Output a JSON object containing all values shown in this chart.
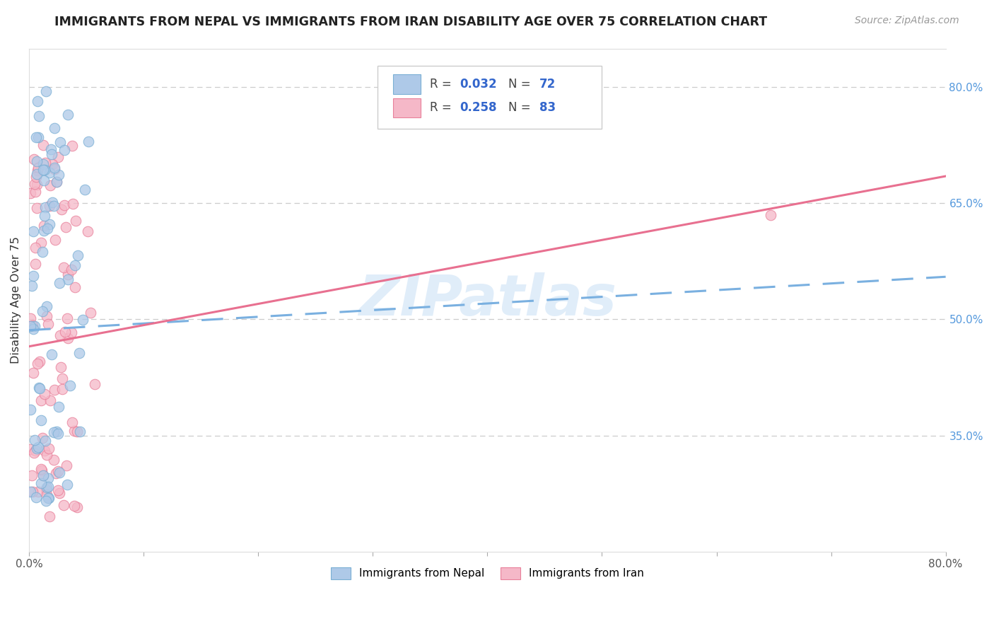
{
  "title": "IMMIGRANTS FROM NEPAL VS IMMIGRANTS FROM IRAN DISABILITY AGE OVER 75 CORRELATION CHART",
  "source": "Source: ZipAtlas.com",
  "ylabel": "Disability Age Over 75",
  "xlim": [
    0.0,
    0.8
  ],
  "ylim": [
    0.2,
    0.85
  ],
  "ytick_positions_right": [
    0.8,
    0.65,
    0.5,
    0.35
  ],
  "nepal_color": "#aec9e8",
  "nepal_edge": "#7aafd4",
  "iran_color": "#f5b8c8",
  "iran_edge": "#e8809a",
  "nepal_line_color": "#7ab0e0",
  "iran_line_color": "#e87090",
  "nepal_R": 0.032,
  "nepal_N": 72,
  "iran_R": 0.258,
  "iran_N": 83,
  "watermark": "ZIPatlas",
  "nepal_line_start_y": 0.486,
  "nepal_line_end_y": 0.555,
  "iran_line_start_y": 0.465,
  "iran_line_end_y": 0.685
}
